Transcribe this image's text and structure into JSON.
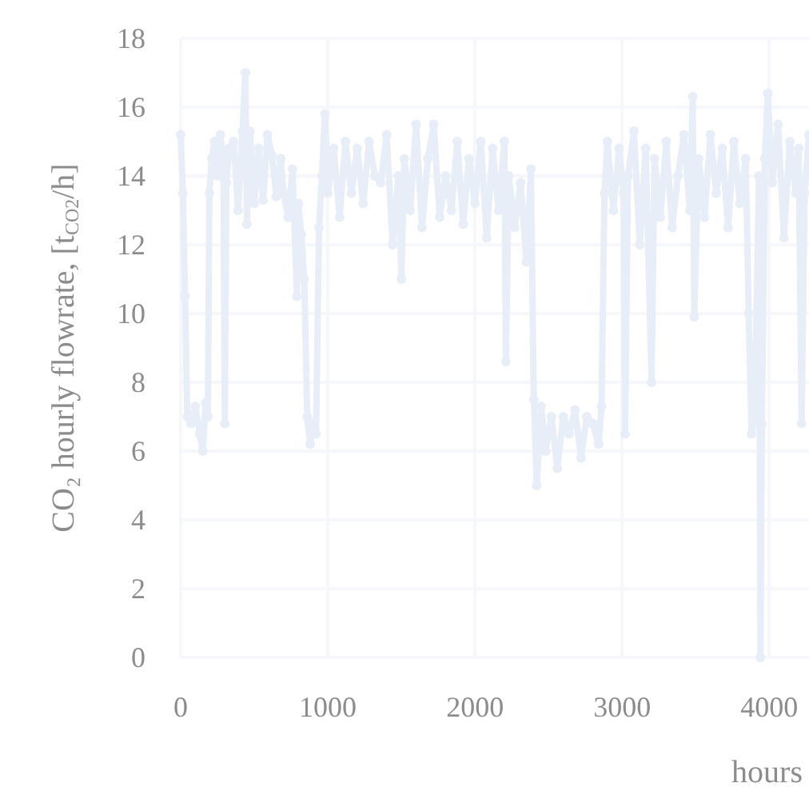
{
  "chart_data": {
    "type": "line",
    "xlabel": "hours",
    "ylabel": "CO₂ hourly flowrate, [t$_{CO2}$/h]",
    "x": [
      0,
      15,
      30,
      45,
      70,
      100,
      130,
      150,
      170,
      185,
      195,
      210,
      230,
      250,
      270,
      290,
      300,
      310,
      330,
      360,
      390,
      420,
      440,
      450,
      470,
      500,
      530,
      560,
      590,
      620,
      650,
      680,
      700,
      730,
      760,
      790,
      800,
      820,
      840,
      860,
      880,
      900,
      920,
      940,
      960,
      980,
      1000,
      1040,
      1080,
      1120,
      1160,
      1200,
      1240,
      1280,
      1320,
      1360,
      1400,
      1440,
      1480,
      1500,
      1520,
      1560,
      1600,
      1640,
      1680,
      1720,
      1760,
      1800,
      1840,
      1880,
      1920,
      1960,
      2000,
      2040,
      2080,
      2120,
      2160,
      2200,
      2210,
      2230,
      2270,
      2310,
      2350,
      2380,
      2400,
      2420,
      2450,
      2480,
      2520,
      2560,
      2600,
      2640,
      2680,
      2720,
      2760,
      2800,
      2840,
      2860,
      2880,
      2900,
      2940,
      2980,
      3010,
      3020,
      3040,
      3080,
      3120,
      3160,
      3200,
      3220,
      3260,
      3300,
      3340,
      3380,
      3420,
      3460,
      3480,
      3490,
      3520,
      3560,
      3600,
      3640,
      3680,
      3720,
      3760,
      3800,
      3840,
      3860,
      3880,
      3900,
      3930,
      3940,
      3950,
      3970,
      3990,
      4020,
      4060,
      4100,
      4140,
      4180,
      4200,
      4220,
      4240,
      4270
    ],
    "series": [
      {
        "color": "#e8eef8",
        "values": [
          15.2,
          13.5,
          10.5,
          7.0,
          6.8,
          7.3,
          6.5,
          6.0,
          7.4,
          7.0,
          13.5,
          14.5,
          15.0,
          14.0,
          15.2,
          14.5,
          6.8,
          13.8,
          14.8,
          15.0,
          13.0,
          15.3,
          17.0,
          12.6,
          15.3,
          13.2,
          14.8,
          13.3,
          15.2,
          14.6,
          13.4,
          14.5,
          13.5,
          12.8,
          14.2,
          10.5,
          13.2,
          12.3,
          11.0,
          7.0,
          6.2,
          6.8,
          6.5,
          12.5,
          14.0,
          15.8,
          13.5,
          14.8,
          12.8,
          15.0,
          13.5,
          14.8,
          13.2,
          15.0,
          14.0,
          13.8,
          15.2,
          12.0,
          14.0,
          11.0,
          14.5,
          13.0,
          15.5,
          12.5,
          14.5,
          15.5,
          12.8,
          14.0,
          13.0,
          15.0,
          12.6,
          14.5,
          13.2,
          15.0,
          12.2,
          14.8,
          13.0,
          15.0,
          8.6,
          14.0,
          12.5,
          13.8,
          11.5,
          14.2,
          7.5,
          5.0,
          7.3,
          6.0,
          7.0,
          5.5,
          7.0,
          6.5,
          7.2,
          5.8,
          7.0,
          6.8,
          6.2,
          7.3,
          13.5,
          15.0,
          13.0,
          14.8,
          13.5,
          6.5,
          14.0,
          15.3,
          12.0,
          14.8,
          8.0,
          14.5,
          12.8,
          15.0,
          12.5,
          14.0,
          15.2,
          13.0,
          16.3,
          9.9,
          14.5,
          12.8,
          15.2,
          13.5,
          14.8,
          12.5,
          15.0,
          13.2,
          14.5,
          10.0,
          6.5,
          7.0,
          14.0,
          0.0,
          6.8,
          14.5,
          16.4,
          13.8,
          15.5,
          12.2,
          15.0,
          13.5,
          14.8,
          6.8,
          13.5,
          15.2
        ]
      }
    ],
    "xlim": [
      0,
      4270
    ],
    "xticks": [
      0,
      1000,
      2000,
      3000,
      4000
    ],
    "ylim": [
      0,
      18
    ],
    "yticks": [
      0,
      2,
      4,
      6,
      8,
      10,
      12,
      14,
      16,
      18
    ],
    "grid": true,
    "marker": "circle",
    "line_style": "solid"
  }
}
